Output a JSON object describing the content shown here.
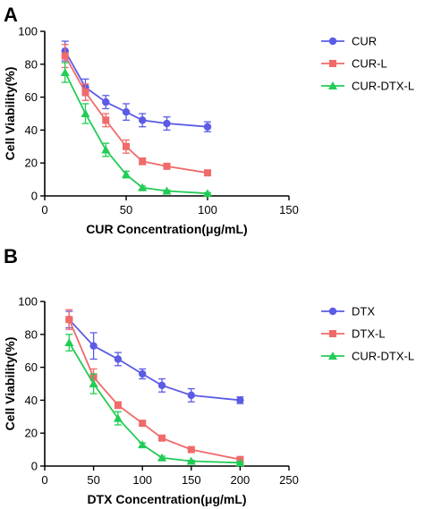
{
  "chart_data": [
    {
      "type": "line",
      "panel_label": "A",
      "xlabel": "CUR Concentration(μg/mL)",
      "ylabel": "Cell Viability(%)",
      "xlim": [
        0,
        150
      ],
      "ylim": [
        0,
        100
      ],
      "xticks": [
        "0",
        "50",
        "100",
        "150"
      ],
      "yticks": [
        "0",
        "20",
        "40",
        "60",
        "80",
        "100"
      ],
      "grid": false,
      "legend_position": "right",
      "series": [
        {
          "name": "CUR",
          "color": "#5b5be6",
          "marker": "circle",
          "x": [
            12.5,
            25,
            37.5,
            50,
            60,
            75,
            100
          ],
          "y": [
            88,
            66,
            57,
            51,
            46,
            44,
            42
          ],
          "err": [
            6,
            5,
            4,
            5,
            4,
            4,
            3
          ]
        },
        {
          "name": "CUR-L",
          "color": "#f06a6a",
          "marker": "square",
          "x": [
            12.5,
            25,
            37.5,
            50,
            60,
            75,
            100
          ],
          "y": [
            85,
            63,
            46,
            30,
            21,
            18,
            14
          ],
          "err": [
            7,
            5,
            4,
            4,
            2,
            1.5,
            1
          ]
        },
        {
          "name": "CUR-DTX-L",
          "color": "#22cc55",
          "marker": "triangle",
          "x": [
            12.5,
            25,
            37.5,
            50,
            60,
            75,
            100
          ],
          "y": [
            75,
            50,
            28,
            13,
            5,
            3,
            1.5
          ],
          "err": [
            6,
            6,
            4,
            2,
            1,
            0.5,
            0.5
          ]
        }
      ]
    },
    {
      "type": "line",
      "panel_label": "B",
      "xlabel": "DTX Concentration(μg/mL)",
      "ylabel": "Cell Viability(%)",
      "xlim": [
        0,
        250
      ],
      "ylim": [
        0,
        100
      ],
      "xticks": [
        "0",
        "50",
        "100",
        "150",
        "200",
        "250"
      ],
      "yticks": [
        "0",
        "20",
        "40",
        "60",
        "80",
        "100"
      ],
      "grid": false,
      "legend_position": "right",
      "series": [
        {
          "name": "DTX",
          "color": "#5b5be6",
          "marker": "circle",
          "x": [
            25,
            50,
            75,
            100,
            120,
            150,
            200
          ],
          "y": [
            89,
            73,
            65,
            56,
            49,
            43,
            40
          ],
          "err": [
            5,
            8,
            4,
            3,
            4,
            4,
            2
          ]
        },
        {
          "name": "DTX-L",
          "color": "#f06a6a",
          "marker": "square",
          "x": [
            25,
            50,
            75,
            100,
            120,
            150,
            200
          ],
          "y": [
            89,
            54,
            37,
            26,
            17,
            10,
            4
          ],
          "err": [
            6,
            5,
            2,
            1,
            1,
            1,
            1
          ]
        },
        {
          "name": "CUR-DTX-L",
          "color": "#22cc55",
          "marker": "triangle",
          "x": [
            25,
            50,
            75,
            100,
            120,
            150,
            200
          ],
          "y": [
            75,
            50,
            29,
            13,
            5,
            3,
            2
          ],
          "err": [
            5,
            6,
            4,
            1,
            1,
            0.5,
            0.5
          ]
        }
      ]
    }
  ]
}
